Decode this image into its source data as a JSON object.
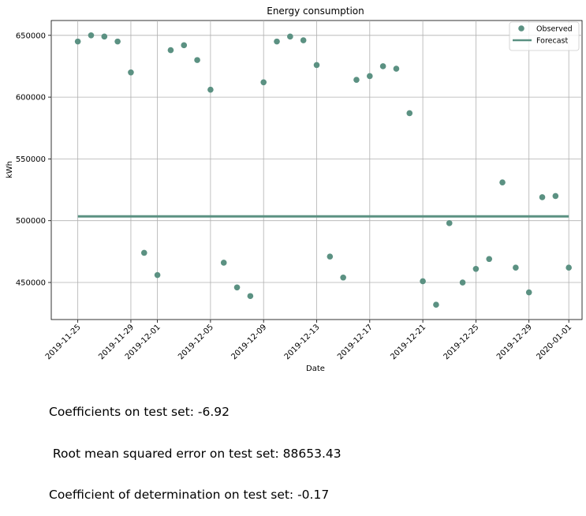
{
  "chart_data": {
    "type": "scatter",
    "title": "Energy consumption",
    "xlabel": "Date",
    "ylabel": "kWh",
    "x_ticks": [
      "2019-11-25",
      "2019-11-29",
      "2019-12-01",
      "2019-12-05",
      "2019-12-09",
      "2019-12-13",
      "2019-12-17",
      "2019-12-21",
      "2019-12-25",
      "2019-12-29",
      "2020-01-01"
    ],
    "y_ticks": [
      450000,
      500000,
      550000,
      600000,
      650000
    ],
    "xlim": [
      "2019-11-23",
      "2020-01-02"
    ],
    "ylim": [
      420000,
      662000
    ],
    "grid": true,
    "legend_position": "top-right",
    "series": [
      {
        "name": "Observed",
        "kind": "scatter",
        "color": "#5b9182",
        "points": [
          {
            "x": "2019-11-25",
            "y": 645000
          },
          {
            "x": "2019-11-26",
            "y": 650000
          },
          {
            "x": "2019-11-27",
            "y": 649000
          },
          {
            "x": "2019-11-28",
            "y": 645000
          },
          {
            "x": "2019-11-29",
            "y": 620000
          },
          {
            "x": "2019-11-30",
            "y": 474000
          },
          {
            "x": "2019-12-01",
            "y": 456000
          },
          {
            "x": "2019-12-02",
            "y": 638000
          },
          {
            "x": "2019-12-03",
            "y": 642000
          },
          {
            "x": "2019-12-04",
            "y": 630000
          },
          {
            "x": "2019-12-05",
            "y": 606000
          },
          {
            "x": "2019-12-06",
            "y": 466000
          },
          {
            "x": "2019-12-07",
            "y": 446000
          },
          {
            "x": "2019-12-08",
            "y": 439000
          },
          {
            "x": "2019-12-09",
            "y": 612000
          },
          {
            "x": "2019-12-10",
            "y": 645000
          },
          {
            "x": "2019-12-11",
            "y": 649000
          },
          {
            "x": "2019-12-12",
            "y": 646000
          },
          {
            "x": "2019-12-13",
            "y": 626000
          },
          {
            "x": "2019-12-14",
            "y": 471000
          },
          {
            "x": "2019-12-15",
            "y": 454000
          },
          {
            "x": "2019-12-16",
            "y": 614000
          },
          {
            "x": "2019-12-17",
            "y": 617000
          },
          {
            "x": "2019-12-18",
            "y": 625000
          },
          {
            "x": "2019-12-19",
            "y": 623000
          },
          {
            "x": "2019-12-20",
            "y": 587000
          },
          {
            "x": "2019-12-21",
            "y": 451000
          },
          {
            "x": "2019-12-22",
            "y": 432000
          },
          {
            "x": "2019-12-23",
            "y": 498000
          },
          {
            "x": "2019-12-24",
            "y": 450000
          },
          {
            "x": "2019-12-25",
            "y": 461000
          },
          {
            "x": "2019-12-26",
            "y": 469000
          },
          {
            "x": "2019-12-27",
            "y": 531000
          },
          {
            "x": "2019-12-28",
            "y": 462000
          },
          {
            "x": "2019-12-29",
            "y": 442000
          },
          {
            "x": "2019-12-30",
            "y": 519000
          },
          {
            "x": "2019-12-31",
            "y": 520000
          },
          {
            "x": "2020-01-01",
            "y": 462000
          }
        ]
      },
      {
        "name": "Forecast",
        "kind": "line",
        "color": "#5b9182",
        "points": [
          {
            "x": "2019-11-25",
            "y": 503500
          },
          {
            "x": "2020-01-01",
            "y": 503500
          }
        ]
      }
    ]
  },
  "stats": {
    "line1": "Coefficients on test set: -6.92",
    "line2": " Root mean squared error on test set: 88653.43",
    "line3": "Coefficient of determination on test set: -0.17"
  }
}
